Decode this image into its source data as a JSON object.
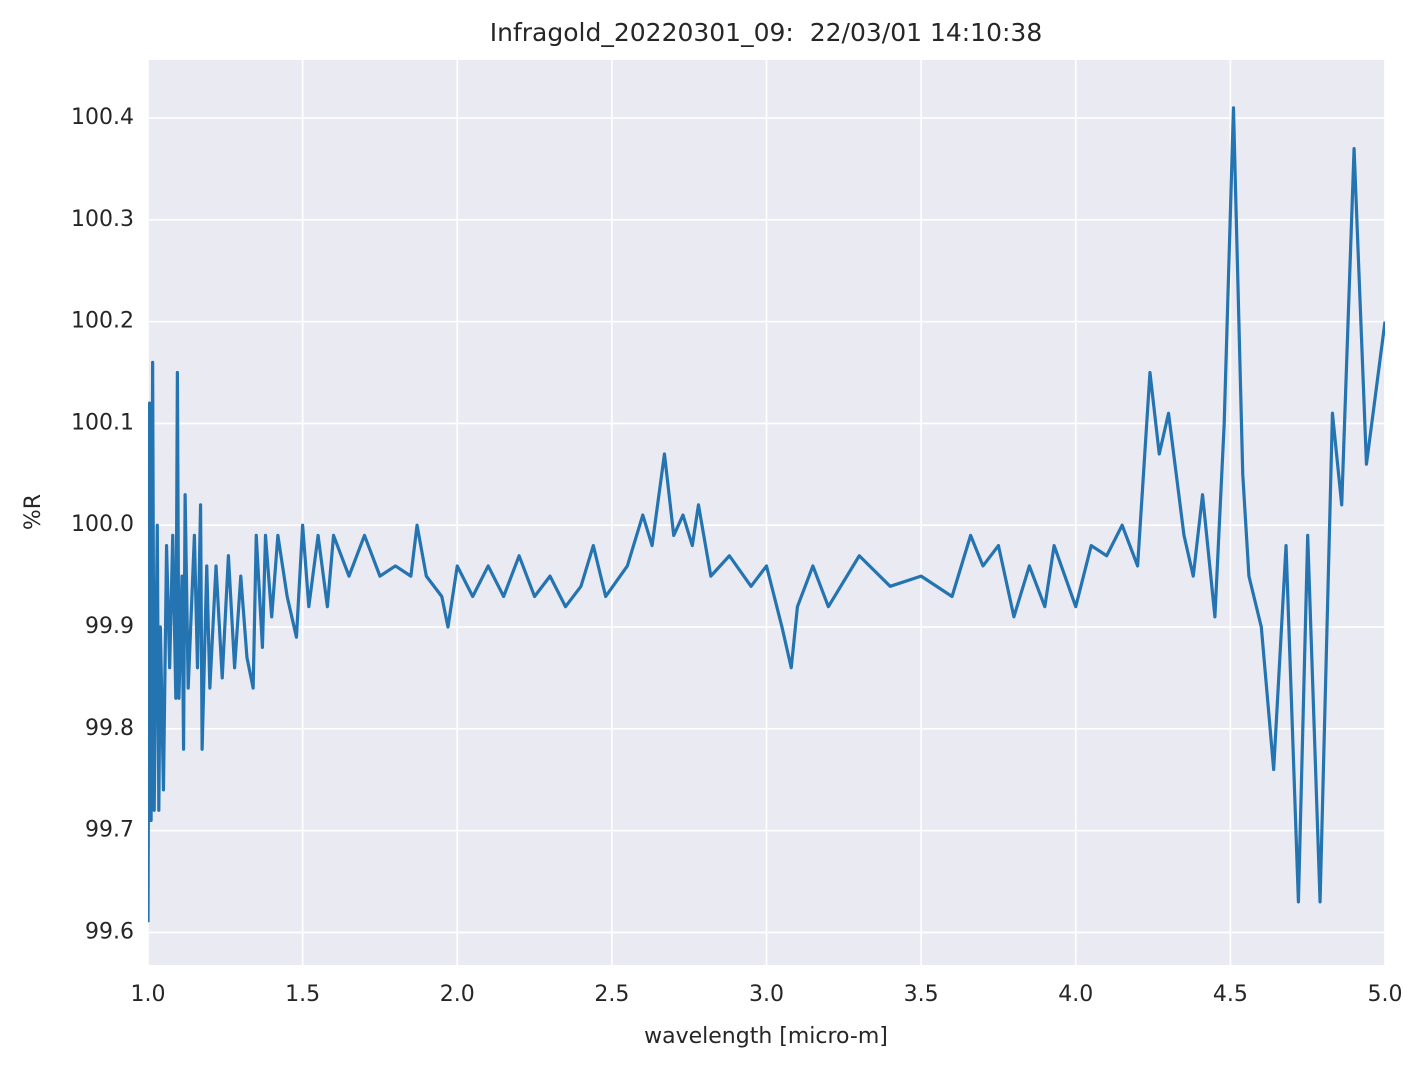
{
  "chart_data": {
    "type": "line",
    "title": "Infragold_20220301_09:  22/03/01 14:10:38",
    "xlabel": "wavelength [micro-m]",
    "ylabel": "%R",
    "grid": true,
    "xlim": [
      1.0,
      5.0
    ],
    "ylim": [
      99.568,
      100.457
    ],
    "xticks": [
      {
        "value": 1.0,
        "label": "1.0"
      },
      1.5,
      {
        "value": 2.0,
        "label": "2.0"
      },
      2.5,
      {
        "value": 3.0,
        "label": "3.0"
      },
      3.5,
      {
        "value": 4.0,
        "label": "4.0"
      },
      4.5,
      {
        "value": 5.0,
        "label": "5.0"
      }
    ],
    "yticks": [
      99.6,
      99.7,
      99.8,
      99.9,
      {
        "value": 100.0,
        "label": "100.0"
      },
      100.1,
      100.2,
      100.3,
      100.4
    ],
    "x": [
      1.0,
      1.005,
      1.01,
      1.015,
      1.02,
      1.03,
      1.035,
      1.04,
      1.05,
      1.06,
      1.07,
      1.08,
      1.09,
      1.095,
      1.1,
      1.11,
      1.115,
      1.12,
      1.13,
      1.15,
      1.16,
      1.17,
      1.175,
      1.19,
      1.2,
      1.22,
      1.24,
      1.26,
      1.28,
      1.3,
      1.32,
      1.34,
      1.35,
      1.37,
      1.38,
      1.4,
      1.42,
      1.45,
      1.48,
      1.5,
      1.52,
      1.55,
      1.58,
      1.6,
      1.65,
      1.7,
      1.75,
      1.8,
      1.85,
      1.87,
      1.9,
      1.95,
      1.97,
      2.0,
      2.05,
      2.1,
      2.15,
      2.2,
      2.25,
      2.3,
      2.35,
      2.4,
      2.44,
      2.48,
      2.55,
      2.6,
      2.63,
      2.67,
      2.7,
      2.73,
      2.76,
      2.78,
      2.82,
      2.88,
      2.95,
      3.0,
      3.05,
      3.08,
      3.1,
      3.15,
      3.2,
      3.3,
      3.4,
      3.5,
      3.6,
      3.66,
      3.7,
      3.75,
      3.8,
      3.85,
      3.9,
      3.93,
      4.0,
      4.05,
      4.1,
      4.15,
      4.2,
      4.24,
      4.27,
      4.3,
      4.35,
      4.38,
      4.41,
      4.45,
      4.48,
      4.51,
      4.54,
      4.56,
      4.6,
      4.64,
      4.68,
      4.72,
      4.75,
      4.79,
      4.83,
      4.86,
      4.9,
      4.94,
      5.0
    ],
    "series": [
      {
        "color": "#2474b1",
        "values": [
          99.61,
          100.12,
          99.71,
          100.16,
          99.72,
          100.0,
          99.72,
          99.9,
          99.74,
          99.98,
          99.86,
          99.99,
          99.83,
          100.15,
          99.83,
          99.95,
          99.78,
          100.03,
          99.84,
          99.99,
          99.86,
          100.02,
          99.78,
          99.96,
          99.84,
          99.96,
          99.85,
          99.97,
          99.86,
          99.95,
          99.87,
          99.84,
          99.99,
          99.88,
          99.99,
          99.91,
          99.99,
          99.93,
          99.89,
          100.0,
          99.92,
          99.99,
          99.92,
          99.99,
          99.95,
          99.99,
          99.95,
          99.96,
          99.95,
          100.0,
          99.95,
          99.93,
          99.9,
          99.96,
          99.93,
          99.96,
          99.93,
          99.97,
          99.93,
          99.95,
          99.92,
          99.94,
          99.98,
          99.93,
          99.96,
          100.01,
          99.98,
          100.07,
          99.99,
          100.01,
          99.98,
          100.02,
          99.95,
          99.97,
          99.94,
          99.96,
          99.9,
          99.86,
          99.92,
          99.96,
          99.92,
          99.97,
          99.94,
          99.95,
          99.93,
          99.99,
          99.96,
          99.98,
          99.91,
          99.96,
          99.92,
          99.98,
          99.92,
          99.98,
          99.97,
          100.0,
          99.96,
          100.15,
          100.07,
          100.11,
          99.99,
          99.95,
          100.03,
          99.91,
          100.1,
          100.41,
          100.05,
          99.95,
          99.9,
          99.76,
          99.98,
          99.63,
          99.99,
          99.63,
          100.11,
          100.02,
          100.37,
          100.06,
          100.2
        ]
      }
    ]
  }
}
